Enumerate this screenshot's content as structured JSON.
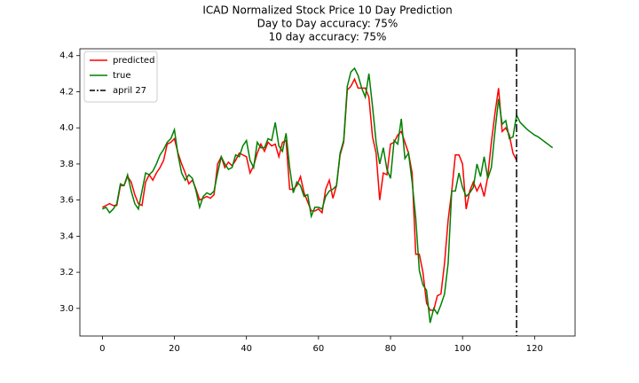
{
  "chart_data": {
    "type": "line",
    "title": [
      "ICAD Normalized Stock Price 10 Day Prediction",
      "Day to Day accuracy: 75%",
      "10 day accuracy: 75%"
    ],
    "series": [
      {
        "name": "predicted",
        "color": "#ff0000",
        "x": [
          0,
          1,
          2,
          3,
          4,
          5,
          6,
          7,
          8,
          9,
          10,
          11,
          12,
          13,
          14,
          15,
          16,
          17,
          18,
          19,
          20,
          21,
          22,
          23,
          24,
          25,
          26,
          27,
          28,
          29,
          30,
          31,
          32,
          33,
          34,
          35,
          36,
          37,
          38,
          39,
          40,
          41,
          42,
          43,
          44,
          45,
          46,
          47,
          48,
          49,
          50,
          51,
          52,
          53,
          54,
          55,
          56,
          57,
          58,
          59,
          60,
          61,
          62,
          63,
          64,
          65,
          66,
          67,
          68,
          69,
          70,
          71,
          72,
          73,
          74,
          75,
          76,
          77,
          78,
          79,
          80,
          81,
          82,
          83,
          84,
          85,
          86,
          87,
          88,
          89,
          90,
          91,
          92,
          93,
          94,
          95,
          96,
          97,
          98,
          99,
          100,
          101,
          102,
          103,
          104,
          105,
          106,
          107,
          108,
          109,
          110,
          111,
          112,
          113,
          114,
          115
        ],
        "values": [
          3.56,
          3.57,
          3.58,
          3.57,
          3.57,
          3.68,
          3.68,
          3.73,
          3.7,
          3.63,
          3.58,
          3.57,
          3.7,
          3.74,
          3.71,
          3.75,
          3.78,
          3.82,
          3.91,
          3.92,
          3.94,
          3.86,
          3.8,
          3.75,
          3.69,
          3.71,
          3.66,
          3.6,
          3.61,
          3.62,
          3.61,
          3.63,
          3.8,
          3.84,
          3.78,
          3.81,
          3.79,
          3.82,
          3.86,
          3.85,
          3.84,
          3.75,
          3.79,
          3.86,
          3.91,
          3.87,
          3.92,
          3.9,
          3.91,
          3.84,
          3.92,
          3.93,
          3.66,
          3.66,
          3.68,
          3.73,
          3.64,
          3.59,
          3.54,
          3.54,
          3.55,
          3.53,
          3.66,
          3.71,
          3.61,
          3.68,
          3.85,
          3.92,
          4.21,
          4.23,
          4.27,
          4.22,
          4.22,
          4.22,
          4.17,
          3.95,
          3.86,
          3.6,
          3.75,
          3.74,
          3.91,
          3.92,
          3.96,
          3.98,
          3.92,
          3.86,
          3.75,
          3.3,
          3.3,
          3.2,
          3.03,
          2.99,
          2.99,
          3.07,
          3.08,
          3.25,
          3.49,
          3.65,
          3.85,
          3.85,
          3.8,
          3.55,
          3.65,
          3.7,
          3.65,
          3.69,
          3.62,
          3.73,
          3.92,
          4.08,
          4.22,
          3.98,
          4.0,
          3.96,
          3.86,
          3.82
        ]
      },
      {
        "name": "true",
        "color": "#008000",
        "x": [
          0,
          1,
          2,
          3,
          4,
          5,
          6,
          7,
          8,
          9,
          10,
          11,
          12,
          13,
          14,
          15,
          16,
          17,
          18,
          19,
          20,
          21,
          22,
          23,
          24,
          25,
          26,
          27,
          28,
          29,
          30,
          31,
          32,
          33,
          34,
          35,
          36,
          37,
          38,
          39,
          40,
          41,
          42,
          43,
          44,
          45,
          46,
          47,
          48,
          49,
          50,
          51,
          52,
          53,
          54,
          55,
          56,
          57,
          58,
          59,
          60,
          61,
          62,
          63,
          64,
          65,
          66,
          67,
          68,
          69,
          70,
          71,
          72,
          73,
          74,
          75,
          76,
          77,
          78,
          79,
          80,
          81,
          82,
          83,
          84,
          85,
          86,
          87,
          88,
          89,
          90,
          91,
          92,
          93,
          94,
          95,
          96,
          97,
          98,
          99,
          100,
          101,
          102,
          103,
          104,
          105,
          106,
          107,
          108,
          109,
          110,
          111,
          112,
          113,
          114,
          115,
          116,
          117,
          118,
          119,
          120,
          121,
          122,
          123,
          124,
          125
        ],
        "values": [
          3.55,
          3.56,
          3.53,
          3.55,
          3.58,
          3.69,
          3.68,
          3.74,
          3.65,
          3.58,
          3.55,
          3.65,
          3.75,
          3.74,
          3.76,
          3.8,
          3.85,
          3.88,
          3.92,
          3.94,
          3.99,
          3.85,
          3.75,
          3.71,
          3.74,
          3.72,
          3.65,
          3.56,
          3.62,
          3.64,
          3.63,
          3.65,
          3.75,
          3.84,
          3.8,
          3.77,
          3.78,
          3.85,
          3.84,
          3.9,
          3.93,
          3.82,
          3.78,
          3.92,
          3.89,
          3.89,
          3.94,
          3.93,
          4.03,
          3.9,
          3.87,
          3.97,
          3.78,
          3.64,
          3.7,
          3.68,
          3.62,
          3.63,
          3.51,
          3.56,
          3.56,
          3.55,
          3.62,
          3.65,
          3.66,
          3.68,
          3.86,
          3.93,
          4.23,
          4.31,
          4.33,
          4.29,
          4.22,
          4.17,
          4.3,
          4.12,
          3.92,
          3.8,
          3.89,
          3.77,
          3.72,
          3.93,
          3.91,
          4.05,
          3.83,
          3.86,
          3.7,
          3.5,
          3.21,
          3.13,
          3.1,
          2.92,
          3.0,
          2.97,
          3.02,
          3.08,
          3.25,
          3.65,
          3.65,
          3.75,
          3.67,
          3.62,
          3.64,
          3.67,
          3.8,
          3.73,
          3.84,
          3.72,
          3.78,
          3.98,
          4.16,
          4.02,
          4.04,
          3.94,
          3.95,
          4.07,
          4.03,
          4.01,
          3.99,
          3.975,
          3.96,
          3.95,
          3.935,
          3.92,
          3.905,
          3.89
        ]
      }
    ],
    "vline": {
      "x": 115,
      "name": "april 27",
      "color": "#000000"
    },
    "xlim": [
      -6.25,
      131.25
    ],
    "xticks": [
      0,
      20,
      40,
      60,
      80,
      100,
      120
    ],
    "ylim": [
      2.847,
      4.438
    ],
    "yticks": [
      {
        "value": 3,
        "label": "3.0"
      },
      3.2,
      3.4,
      3.6,
      3.8,
      {
        "value": 4,
        "label": "4.0"
      },
      4.2,
      4.4
    ],
    "legend": "upper left"
  }
}
